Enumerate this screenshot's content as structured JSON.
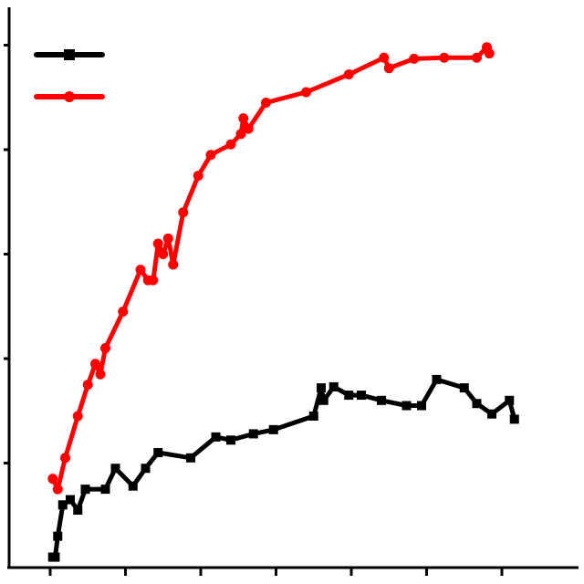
{
  "chart_data": {
    "type": "line",
    "title": "",
    "xlabel": "",
    "ylabel": "",
    "xlim": [
      0,
      19.5
    ],
    "ylim": [
      0,
      5
    ],
    "x_ticks": [
      0,
      3,
      6,
      9,
      12,
      15,
      18
    ],
    "y_ticks": [
      0,
      1,
      2,
      3,
      4,
      5
    ],
    "grid": false,
    "legend": "top-left",
    "series": [
      {
        "color": "#000000",
        "marker": "square",
        "points": [
          [
            0.1,
            0.1
          ],
          [
            0.2,
            0.1
          ],
          [
            0.3,
            0.3
          ],
          [
            0.5,
            0.6
          ],
          [
            0.8,
            0.65
          ],
          [
            1.1,
            0.55
          ],
          [
            1.4,
            0.75
          ],
          [
            2.2,
            0.75
          ],
          [
            2.6,
            0.95
          ],
          [
            3.3,
            0.78
          ],
          [
            3.8,
            0.95
          ],
          [
            4.3,
            1.1
          ],
          [
            5.6,
            1.05
          ],
          [
            6.6,
            1.25
          ],
          [
            7.2,
            1.22
          ],
          [
            8.1,
            1.28
          ],
          [
            8.9,
            1.32
          ],
          [
            10.5,
            1.45
          ],
          [
            10.8,
            1.72
          ],
          [
            10.9,
            1.6
          ],
          [
            11.3,
            1.73
          ],
          [
            11.9,
            1.65
          ],
          [
            12.4,
            1.65
          ],
          [
            13.2,
            1.6
          ],
          [
            14.2,
            1.55
          ],
          [
            14.8,
            1.55
          ],
          [
            15.4,
            1.8
          ],
          [
            16.5,
            1.72
          ],
          [
            17.0,
            1.57
          ],
          [
            17.6,
            1.47
          ],
          [
            18.3,
            1.6
          ],
          [
            18.5,
            1.42
          ]
        ]
      },
      {
        "color": "#ff0000",
        "marker": "circle",
        "points": [
          [
            0.1,
            0.85
          ],
          [
            0.3,
            0.75
          ],
          [
            0.6,
            1.05
          ],
          [
            1.1,
            1.45
          ],
          [
            1.5,
            1.75
          ],
          [
            1.8,
            1.95
          ],
          [
            2.0,
            1.85
          ],
          [
            2.2,
            2.1
          ],
          [
            2.9,
            2.45
          ],
          [
            3.6,
            2.85
          ],
          [
            3.9,
            2.75
          ],
          [
            4.1,
            2.75
          ],
          [
            4.3,
            3.1
          ],
          [
            4.5,
            3.0
          ],
          [
            4.7,
            3.15
          ],
          [
            4.9,
            2.9
          ],
          [
            5.3,
            3.4
          ],
          [
            5.9,
            3.75
          ],
          [
            6.4,
            3.95
          ],
          [
            7.2,
            4.05
          ],
          [
            7.6,
            4.15
          ],
          [
            7.7,
            4.3
          ],
          [
            7.9,
            4.2
          ],
          [
            8.6,
            4.45
          ],
          [
            10.2,
            4.55
          ],
          [
            11.9,
            4.72
          ],
          [
            13.3,
            4.88
          ],
          [
            13.5,
            4.78
          ],
          [
            14.5,
            4.87
          ],
          [
            15.7,
            4.88
          ],
          [
            17.0,
            4.88
          ],
          [
            17.4,
            4.98
          ],
          [
            17.5,
            4.92
          ]
        ]
      }
    ]
  }
}
